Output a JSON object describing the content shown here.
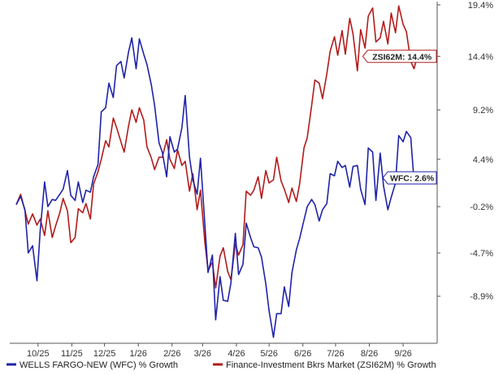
{
  "chart_data": {
    "type": "line",
    "x_axis_type": "date",
    "x_ticks": [
      {
        "label": "10/25",
        "date": "2025-10-01"
      },
      {
        "label": "11/25",
        "date": "2025-11-01"
      },
      {
        "label": "12/25",
        "date": "2025-12-01"
      },
      {
        "label": "1/26",
        "date": "2026-01-01"
      },
      {
        "label": "2/26",
        "date": "2026-02-01"
      },
      {
        "label": "3/26",
        "date": "2026-03-01"
      },
      {
        "label": "4/26",
        "date": "2026-04-01"
      },
      {
        "label": "5/26",
        "date": "2026-05-01"
      },
      {
        "label": "6/26",
        "date": "2026-06-01"
      },
      {
        "label": "7/26",
        "date": "2026-07-01"
      },
      {
        "label": "8/26",
        "date": "2026-08-01"
      },
      {
        "label": "9/26",
        "date": "2026-09-01"
      }
    ],
    "y_ticks": [
      {
        "label": "19.4%",
        "value": 19.4
      },
      {
        "label": "14.4%",
        "value": 14.4
      },
      {
        "label": "9.2%",
        "value": 9.2
      },
      {
        "label": "4.4%",
        "value": 4.4
      },
      {
        "label": "-0.2%",
        "value": -0.2
      },
      {
        "label": "-4.7%",
        "value": -4.7
      },
      {
        "label": "-8.9%",
        "value": -8.9
      }
    ],
    "ylim": [
      -13.0,
      19.4
    ],
    "xlim": [
      "2025-09-11",
      "2026-09-30"
    ],
    "grid": false,
    "legend_position": "bottom",
    "series": [
      {
        "name": "WELLS FARGO-NEW (WFC) % Growth",
        "color": "#1f23a8",
        "end_label": "WFC: 2.6%",
        "points": [
          [
            "2025-09-11",
            0.0
          ],
          [
            "2025-09-15",
            0.8
          ],
          [
            "2025-09-19",
            -0.5
          ],
          [
            "2025-09-22",
            -4.7
          ],
          [
            "2025-09-26",
            -4.0
          ],
          [
            "2025-09-30",
            -7.4
          ],
          [
            "2025-10-03",
            -2.5
          ],
          [
            "2025-10-07",
            2.2
          ],
          [
            "2025-10-10",
            -0.2
          ],
          [
            "2025-10-14",
            0.5
          ],
          [
            "2025-10-17",
            0.4
          ],
          [
            "2025-10-21",
            1.0
          ],
          [
            "2025-10-24",
            1.5
          ],
          [
            "2025-10-28",
            3.3
          ],
          [
            "2025-10-31",
            0.9
          ],
          [
            "2025-11-04",
            0.4
          ],
          [
            "2025-11-07",
            2.2
          ],
          [
            "2025-11-11",
            0.2
          ],
          [
            "2025-11-14",
            1.4
          ],
          [
            "2025-11-18",
            1.2
          ],
          [
            "2025-11-21",
            2.7
          ],
          [
            "2025-11-25",
            3.9
          ],
          [
            "2025-11-28",
            9.0
          ],
          [
            "2025-12-02",
            9.4
          ],
          [
            "2025-12-05",
            11.8
          ],
          [
            "2025-12-09",
            10.4
          ],
          [
            "2025-12-12",
            13.5
          ],
          [
            "2025-12-16",
            13.9
          ],
          [
            "2025-12-19",
            12.3
          ],
          [
            "2025-12-23",
            14.8
          ],
          [
            "2025-12-26",
            16.2
          ],
          [
            "2025-12-30",
            13.2
          ],
          [
            "2026-01-02",
            16.1
          ],
          [
            "2026-01-06",
            14.6
          ],
          [
            "2026-01-09",
            13.6
          ],
          [
            "2026-01-13",
            11.6
          ],
          [
            "2026-01-16",
            9.6
          ],
          [
            "2026-01-20",
            6.0
          ],
          [
            "2026-01-23",
            5.1
          ],
          [
            "2026-01-27",
            2.7
          ],
          [
            "2026-01-30",
            6.6
          ],
          [
            "2026-02-03",
            5.1
          ],
          [
            "2026-02-06",
            5.4
          ],
          [
            "2026-02-10",
            7.5
          ],
          [
            "2026-02-13",
            10.6
          ],
          [
            "2026-02-17",
            4.6
          ],
          [
            "2026-02-20",
            2.4
          ],
          [
            "2026-02-24",
            1.0
          ],
          [
            "2026-02-27",
            4.5
          ],
          [
            "2026-03-03",
            -1.8
          ],
          [
            "2026-03-06",
            -6.6
          ],
          [
            "2026-03-10",
            -4.9
          ],
          [
            "2026-03-13",
            -11.2
          ],
          [
            "2026-03-17",
            -7.0
          ],
          [
            "2026-03-20",
            -9.3
          ],
          [
            "2026-03-24",
            -9.4
          ],
          [
            "2026-03-27",
            -7.6
          ],
          [
            "2026-03-31",
            -2.8
          ],
          [
            "2026-04-03",
            -6.8
          ],
          [
            "2026-04-07",
            -5.8
          ],
          [
            "2026-04-10",
            -1.8
          ],
          [
            "2026-04-14",
            -3.2
          ],
          [
            "2026-04-17",
            -4.1
          ],
          [
            "2026-04-21",
            -4.2
          ],
          [
            "2026-04-24",
            -5.1
          ],
          [
            "2026-04-28",
            -7.7
          ],
          [
            "2026-05-01",
            -10.3
          ],
          [
            "2026-05-05",
            -12.9
          ],
          [
            "2026-05-08",
            -10.6
          ],
          [
            "2026-05-12",
            -10.6
          ],
          [
            "2026-05-15",
            -8.0
          ],
          [
            "2026-05-19",
            -9.9
          ],
          [
            "2026-05-22",
            -6.6
          ],
          [
            "2026-05-26",
            -4.4
          ],
          [
            "2026-05-29",
            -3.3
          ],
          [
            "2026-06-02",
            -1.5
          ],
          [
            "2026-06-05",
            -0.2
          ],
          [
            "2026-06-09",
            0.5
          ],
          [
            "2026-06-12",
            0.0
          ],
          [
            "2026-06-16",
            -1.6
          ],
          [
            "2026-06-19",
            -0.5
          ],
          [
            "2026-06-23",
            0.1
          ],
          [
            "2026-06-26",
            3.0
          ],
          [
            "2026-06-30",
            2.8
          ],
          [
            "2026-07-03",
            4.2
          ],
          [
            "2026-07-07",
            3.6
          ],
          [
            "2026-07-10",
            3.8
          ],
          [
            "2026-07-14",
            1.7
          ],
          [
            "2026-07-17",
            3.7
          ],
          [
            "2026-07-21",
            3.8
          ],
          [
            "2026-07-24",
            1.5
          ],
          [
            "2026-07-28",
            0.0
          ],
          [
            "2026-07-31",
            5.5
          ],
          [
            "2026-08-04",
            5.1
          ],
          [
            "2026-08-07",
            0.4
          ],
          [
            "2026-08-11",
            5.0
          ],
          [
            "2026-08-14",
            1.8
          ],
          [
            "2026-08-18",
            -0.5
          ],
          [
            "2026-08-21",
            0.7
          ],
          [
            "2026-08-25",
            2.1
          ],
          [
            "2026-08-28",
            6.7
          ],
          [
            "2026-09-01",
            6.1
          ],
          [
            "2026-09-04",
            7.1
          ],
          [
            "2026-09-08",
            6.5
          ],
          [
            "2026-09-11",
            2.3
          ],
          [
            "2026-09-14",
            2.6
          ]
        ]
      },
      {
        "name": "Finance-Investment Bkrs Market (ZSI62M) % Growth",
        "color": "#b31b1b",
        "end_label": "ZSI62M: 14.4%",
        "points": [
          [
            "2025-09-11",
            0.0
          ],
          [
            "2025-09-15",
            1.0
          ],
          [
            "2025-09-19",
            -0.6
          ],
          [
            "2025-09-22",
            -1.9
          ],
          [
            "2025-09-26",
            -0.9
          ],
          [
            "2025-09-30",
            -2.0
          ],
          [
            "2025-10-03",
            -1.4
          ],
          [
            "2025-10-07",
            -3.0
          ],
          [
            "2025-10-10",
            -0.6
          ],
          [
            "2025-10-14",
            -3.2
          ],
          [
            "2025-10-17",
            -2.1
          ],
          [
            "2025-10-21",
            -0.8
          ],
          [
            "2025-10-24",
            0.6
          ],
          [
            "2025-10-28",
            -0.6
          ],
          [
            "2025-10-31",
            -3.7
          ],
          [
            "2025-11-04",
            -3.2
          ],
          [
            "2025-11-07",
            -0.4
          ],
          [
            "2025-11-11",
            -0.8
          ],
          [
            "2025-11-14",
            0.1
          ],
          [
            "2025-11-18",
            -1.4
          ],
          [
            "2025-11-21",
            2.0
          ],
          [
            "2025-11-25",
            3.2
          ],
          [
            "2025-11-28",
            4.4
          ],
          [
            "2025-12-02",
            6.2
          ],
          [
            "2025-12-05",
            5.6
          ],
          [
            "2025-12-09",
            8.4
          ],
          [
            "2025-12-12",
            7.5
          ],
          [
            "2025-12-16",
            6.1
          ],
          [
            "2025-12-19",
            5.1
          ],
          [
            "2025-12-23",
            7.6
          ],
          [
            "2025-12-26",
            9.2
          ],
          [
            "2025-12-30",
            8.0
          ],
          [
            "2026-01-02",
            9.4
          ],
          [
            "2026-01-06",
            8.2
          ],
          [
            "2026-01-09",
            5.6
          ],
          [
            "2026-01-13",
            4.5
          ],
          [
            "2026-01-16",
            3.4
          ],
          [
            "2026-01-20",
            4.6
          ],
          [
            "2026-01-23",
            4.6
          ],
          [
            "2026-01-27",
            6.3
          ],
          [
            "2026-01-30",
            4.4
          ],
          [
            "2026-02-03",
            3.5
          ],
          [
            "2026-02-06",
            5.3
          ],
          [
            "2026-02-10",
            3.8
          ],
          [
            "2026-02-13",
            4.2
          ],
          [
            "2026-02-17",
            1.3
          ],
          [
            "2026-02-20",
            3.0
          ],
          [
            "2026-02-24",
            -0.5
          ],
          [
            "2026-02-27",
            1.4
          ],
          [
            "2026-03-03",
            -3.6
          ],
          [
            "2026-03-06",
            -6.4
          ],
          [
            "2026-03-10",
            -5.6
          ],
          [
            "2026-03-13",
            -8.1
          ],
          [
            "2026-03-17",
            -5.0
          ],
          [
            "2026-03-20",
            -4.2
          ],
          [
            "2026-03-24",
            -6.5
          ],
          [
            "2026-03-27",
            -7.3
          ],
          [
            "2026-03-31",
            -3.8
          ],
          [
            "2026-04-03",
            -4.9
          ],
          [
            "2026-04-07",
            -3.9
          ],
          [
            "2026-04-10",
            1.3
          ],
          [
            "2026-04-14",
            0.9
          ],
          [
            "2026-04-17",
            1.4
          ],
          [
            "2026-04-21",
            2.7
          ],
          [
            "2026-04-24",
            0.6
          ],
          [
            "2026-04-28",
            3.3
          ],
          [
            "2026-05-01",
            2.1
          ],
          [
            "2026-05-05",
            2.4
          ],
          [
            "2026-05-08",
            4.6
          ],
          [
            "2026-05-12",
            2.3
          ],
          [
            "2026-05-15",
            1.5
          ],
          [
            "2026-05-19",
            0.2
          ],
          [
            "2026-05-22",
            1.6
          ],
          [
            "2026-05-26",
            0.3
          ],
          [
            "2026-05-29",
            2.0
          ],
          [
            "2026-06-02",
            5.5
          ],
          [
            "2026-06-05",
            6.5
          ],
          [
            "2026-06-09",
            9.6
          ],
          [
            "2026-06-12",
            12.1
          ],
          [
            "2026-06-16",
            11.8
          ],
          [
            "2026-06-19",
            10.3
          ],
          [
            "2026-06-23",
            12.7
          ],
          [
            "2026-06-26",
            14.9
          ],
          [
            "2026-06-30",
            16.3
          ],
          [
            "2026-07-03",
            14.5
          ],
          [
            "2026-07-07",
            16.9
          ],
          [
            "2026-07-10",
            14.6
          ],
          [
            "2026-07-14",
            18.1
          ],
          [
            "2026-07-17",
            16.6
          ],
          [
            "2026-07-21",
            13.0
          ],
          [
            "2026-07-24",
            17.0
          ],
          [
            "2026-07-28",
            15.2
          ],
          [
            "2026-07-31",
            18.3
          ],
          [
            "2026-08-04",
            19.1
          ],
          [
            "2026-08-07",
            15.8
          ],
          [
            "2026-08-11",
            16.2
          ],
          [
            "2026-08-14",
            17.8
          ],
          [
            "2026-08-18",
            15.6
          ],
          [
            "2026-08-21",
            18.6
          ],
          [
            "2026-08-25",
            16.7
          ],
          [
            "2026-08-28",
            19.3
          ],
          [
            "2026-09-01",
            17.5
          ],
          [
            "2026-09-04",
            16.8
          ],
          [
            "2026-09-08",
            13.9
          ],
          [
            "2026-09-11",
            13.2
          ],
          [
            "2026-09-14",
            14.4
          ]
        ]
      }
    ]
  }
}
